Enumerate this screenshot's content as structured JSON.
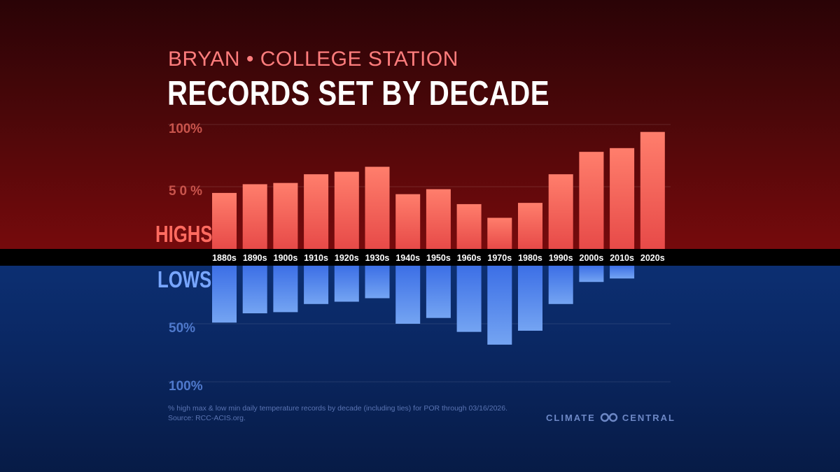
{
  "chart_data": {
    "type": "bar",
    "subtitle": "BRYAN • COLLEGE STATION",
    "title": "RECORDS SET BY DECADE",
    "categories": [
      "1880s",
      "1890s",
      "1900s",
      "1910s",
      "1920s",
      "1930s",
      "1940s",
      "1950s",
      "1960s",
      "1970s",
      "1980s",
      "1990s",
      "2000s",
      "2010s",
      "2020s"
    ],
    "series": [
      {
        "name": "HIGHS",
        "values": [
          45,
          52,
          53,
          60,
          62,
          66,
          44,
          48,
          36,
          25,
          37,
          60,
          78,
          81,
          94
        ]
      },
      {
        "name": "LOWS",
        "values": [
          49,
          41,
          40,
          33,
          31,
          28,
          50,
          45,
          57,
          68,
          56,
          33,
          14,
          11,
          0
        ]
      }
    ],
    "highs_ticks": [
      "100%",
      "50%"
    ],
    "lows_ticks": [
      "50%",
      "100%"
    ],
    "ylim": [
      0,
      100
    ],
    "colors": {
      "highs_top": "#ff7e6c",
      "highs_bottom": "#e74a48",
      "lows_top": "#3c6fe6",
      "lows_bottom": "#74a4f2"
    }
  },
  "labels": {
    "highs": "HIGHS",
    "lows": "LOWS"
  },
  "footnote": {
    "line1": "% high max & low min daily temperature records by decade (including ties) for POR through 03/16/2026.",
    "line2": "Source: RCC-ACIS.org."
  },
  "brand": {
    "left": "CLIMATE",
    "right": "CENTRAL"
  }
}
